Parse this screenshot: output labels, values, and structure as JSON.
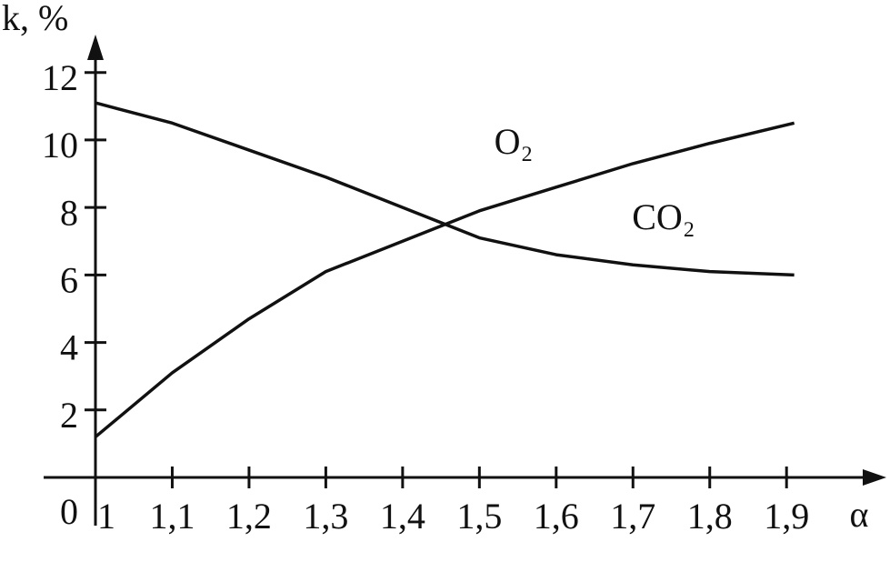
{
  "chart_data": {
    "type": "line",
    "y_label": "k, %",
    "x_label": "α",
    "x": [
      1,
      1.1,
      1.2,
      1.3,
      1.4,
      1.5,
      1.6,
      1.7,
      1.8,
      1.91
    ],
    "series": [
      {
        "name": "O₂",
        "color": "#111111",
        "values": [
          1.2,
          3.1,
          4.7,
          6.1,
          7.0,
          7.9,
          8.6,
          9.3,
          9.9,
          10.5
        ]
      },
      {
        "name": "CO₂",
        "color": "#111111",
        "values": [
          11.1,
          10.5,
          9.7,
          8.9,
          8.0,
          7.1,
          6.6,
          6.3,
          6.1,
          6.0
        ]
      }
    ],
    "xlim": [
      1,
      2.03
    ],
    "ylim": [
      0,
      12.8
    ],
    "xticks": [
      1,
      {
        "value": 1.1,
        "label": "1,1"
      },
      {
        "value": 1.2,
        "label": "1,2"
      },
      {
        "value": 1.3,
        "label": "1,3"
      },
      {
        "value": 1.4,
        "label": "1,4"
      },
      {
        "value": 1.5,
        "label": "1,5"
      },
      {
        "value": 1.6,
        "label": "1,6"
      },
      {
        "value": 1.7,
        "label": "1,7"
      },
      {
        "value": 1.8,
        "label": "1,8"
      },
      {
        "value": 1.9,
        "label": "1,9"
      }
    ],
    "yticks": [
      0,
      2,
      4,
      6,
      8,
      10,
      12
    ]
  }
}
